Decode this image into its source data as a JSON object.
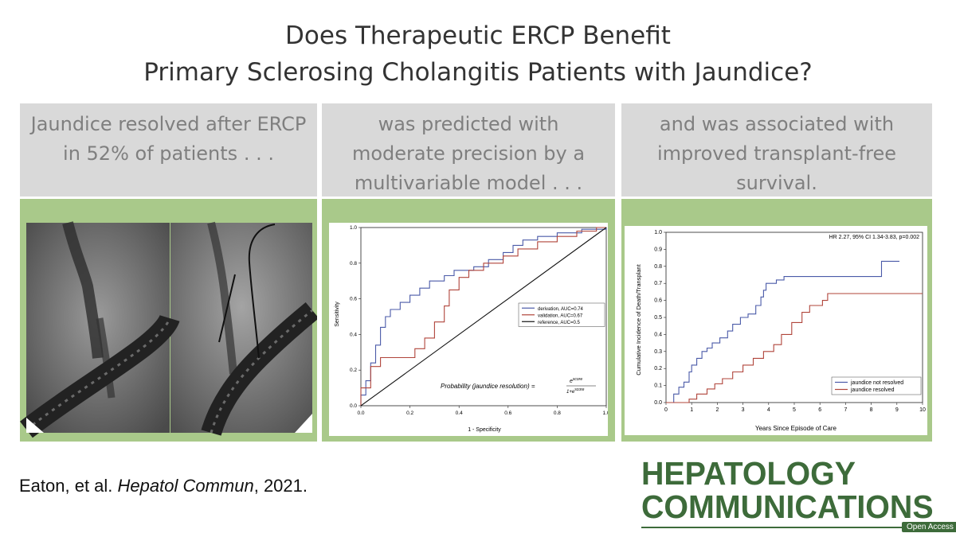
{
  "title": {
    "line1": "Does Therapeutic ERCP Benefit",
    "line2": "Primary Sclerosing Cholangitis Patients with Jaundice?"
  },
  "columns": [
    {
      "lines": [
        "Jaundice resolved after ERCP",
        "in 52% of patients . . ."
      ]
    },
    {
      "lines": [
        "was predicted with",
        "moderate precision by a",
        "multivariable model . . ."
      ]
    },
    {
      "lines": [
        "and was associated with",
        "improved transplant-free",
        "survival."
      ]
    }
  ],
  "citation": {
    "authors": "Eaton, et al. ",
    "journal": "Hepatol Commun",
    "year": ", 2021."
  },
  "logo": {
    "line1": "HEPATOLOGY",
    "line2": "COMMUNICATIONS",
    "badge": "Open Access"
  },
  "colors": {
    "accent_green": "#a9c98a",
    "caption_gray": "#d9d9d9",
    "logo_green": "#3d6b3a",
    "blue": "#4a5aa8",
    "red": "#b0443a"
  },
  "chart_data": [
    {
      "type": "line",
      "xlabel": "1 - Specificity",
      "ylabel": "Sensitivity",
      "xlim": [
        0,
        1.0
      ],
      "ylim": [
        0,
        1.0
      ],
      "xticks": [
        "0.0",
        "0.2",
        "0.4",
        "0.6",
        "0.8",
        "1.0"
      ],
      "yticks": [
        "0.0",
        "0.2",
        "0.4",
        "0.6",
        "0.8",
        "1.0"
      ],
      "formula": "Probability (jaundice resolution) = e^score / (1+e^score)",
      "formula_parts": {
        "lhs": "Probability (jaundice resolution) =",
        "num": "e",
        "num_sup": "score",
        "den": "1+e",
        "den_sup": "score"
      },
      "legend_position": "right",
      "series": [
        {
          "name": "derivation, AUC=0.74",
          "color": "#4a5aa8",
          "x": [
            0,
            0,
            0.02,
            0.02,
            0.04,
            0.04,
            0.06,
            0.06,
            0.08,
            0.08,
            0.1,
            0.1,
            0.12,
            0.12,
            0.16,
            0.16,
            0.2,
            0.2,
            0.24,
            0.24,
            0.28,
            0.28,
            0.34,
            0.34,
            0.38,
            0.38,
            0.46,
            0.46,
            0.52,
            0.52,
            0.58,
            0.58,
            0.62,
            0.62,
            0.66,
            0.66,
            0.72,
            0.72,
            0.8,
            0.8,
            0.9,
            0.9,
            1.0,
            1.0
          ],
          "y": [
            0,
            0.06,
            0.06,
            0.14,
            0.14,
            0.24,
            0.24,
            0.34,
            0.34,
            0.44,
            0.44,
            0.5,
            0.5,
            0.54,
            0.54,
            0.58,
            0.58,
            0.62,
            0.62,
            0.66,
            0.66,
            0.7,
            0.7,
            0.73,
            0.73,
            0.76,
            0.76,
            0.78,
            0.78,
            0.82,
            0.82,
            0.86,
            0.86,
            0.9,
            0.9,
            0.93,
            0.93,
            0.95,
            0.95,
            0.97,
            0.97,
            0.99,
            0.99,
            1.0
          ]
        },
        {
          "name": "validation, AUC=0.67",
          "color": "#b0443a",
          "x": [
            0,
            0,
            0.04,
            0.04,
            0.08,
            0.08,
            0.14,
            0.14,
            0.22,
            0.22,
            0.26,
            0.26,
            0.3,
            0.3,
            0.34,
            0.34,
            0.36,
            0.36,
            0.4,
            0.4,
            0.44,
            0.44,
            0.5,
            0.5,
            0.58,
            0.58,
            0.64,
            0.64,
            0.72,
            0.72,
            0.8,
            0.8,
            0.88,
            0.88,
            0.96,
            0.96,
            1.0
          ],
          "y": [
            0,
            0.1,
            0.1,
            0.22,
            0.22,
            0.27,
            0.27,
            0.27,
            0.27,
            0.32,
            0.32,
            0.38,
            0.38,
            0.47,
            0.47,
            0.56,
            0.56,
            0.65,
            0.65,
            0.72,
            0.72,
            0.76,
            0.76,
            0.8,
            0.8,
            0.84,
            0.84,
            0.88,
            0.88,
            0.92,
            0.92,
            0.95,
            0.95,
            0.98,
            0.98,
            1.0,
            1.0
          ]
        },
        {
          "name": "reference, AUC=0.5",
          "color": "#111111",
          "x": [
            0,
            1
          ],
          "y": [
            0,
            1
          ]
        }
      ]
    },
    {
      "type": "line",
      "annotation": "HR 2.27, 95% CI 1.34-3.83, p=0.002",
      "xlabel": "Years Since Episode of Care",
      "ylabel": "Cumulative Incidence of Death/Transplant",
      "xlim": [
        0,
        10
      ],
      "ylim": [
        0,
        1.0
      ],
      "xticks": [
        "0",
        "1",
        "2",
        "3",
        "4",
        "5",
        "6",
        "7",
        "8",
        "9",
        "10"
      ],
      "yticks": [
        "0.0",
        "0.1",
        "0.2",
        "0.3",
        "0.4",
        "0.5",
        "0.6",
        "0.7",
        "0.8",
        "0.9",
        "1.0"
      ],
      "legend_position": "bottom-right",
      "series": [
        {
          "name": "jaundice not resolved",
          "color": "#4a5aa8",
          "x": [
            0,
            0.3,
            0.3,
            0.5,
            0.5,
            0.7,
            0.7,
            0.9,
            0.9,
            1.0,
            1.0,
            1.2,
            1.2,
            1.4,
            1.4,
            1.6,
            1.6,
            1.8,
            1.8,
            2.1,
            2.1,
            2.4,
            2.4,
            2.6,
            2.6,
            2.9,
            2.9,
            3.2,
            3.2,
            3.5,
            3.5,
            3.7,
            3.7,
            3.8,
            3.8,
            3.9,
            3.9,
            4.3,
            4.3,
            4.6,
            4.6,
            8.4,
            8.4,
            9.1
          ],
          "y": [
            0,
            0,
            0.05,
            0.05,
            0.09,
            0.09,
            0.12,
            0.12,
            0.18,
            0.18,
            0.22,
            0.22,
            0.26,
            0.26,
            0.3,
            0.3,
            0.32,
            0.32,
            0.35,
            0.35,
            0.38,
            0.38,
            0.42,
            0.42,
            0.46,
            0.46,
            0.5,
            0.5,
            0.52,
            0.52,
            0.57,
            0.57,
            0.62,
            0.62,
            0.66,
            0.66,
            0.7,
            0.7,
            0.72,
            0.72,
            0.74,
            0.74,
            0.83,
            0.83
          ]
        },
        {
          "name": "jaundice resolved",
          "color": "#b0443a",
          "x": [
            0,
            0.9,
            0.9,
            1.2,
            1.2,
            1.6,
            1.6,
            1.9,
            1.9,
            2.2,
            2.2,
            2.6,
            2.6,
            3.0,
            3.0,
            3.4,
            3.4,
            3.8,
            3.8,
            4.2,
            4.2,
            4.5,
            4.5,
            4.9,
            4.9,
            5.3,
            5.3,
            5.6,
            5.6,
            6.1,
            6.1,
            6.3,
            6.3,
            10.0
          ],
          "y": [
            0,
            0,
            0.02,
            0.02,
            0.05,
            0.05,
            0.08,
            0.08,
            0.11,
            0.11,
            0.14,
            0.14,
            0.18,
            0.18,
            0.22,
            0.22,
            0.26,
            0.26,
            0.3,
            0.3,
            0.34,
            0.34,
            0.4,
            0.4,
            0.47,
            0.47,
            0.53,
            0.53,
            0.57,
            0.57,
            0.6,
            0.6,
            0.64,
            0.64
          ]
        }
      ]
    }
  ]
}
